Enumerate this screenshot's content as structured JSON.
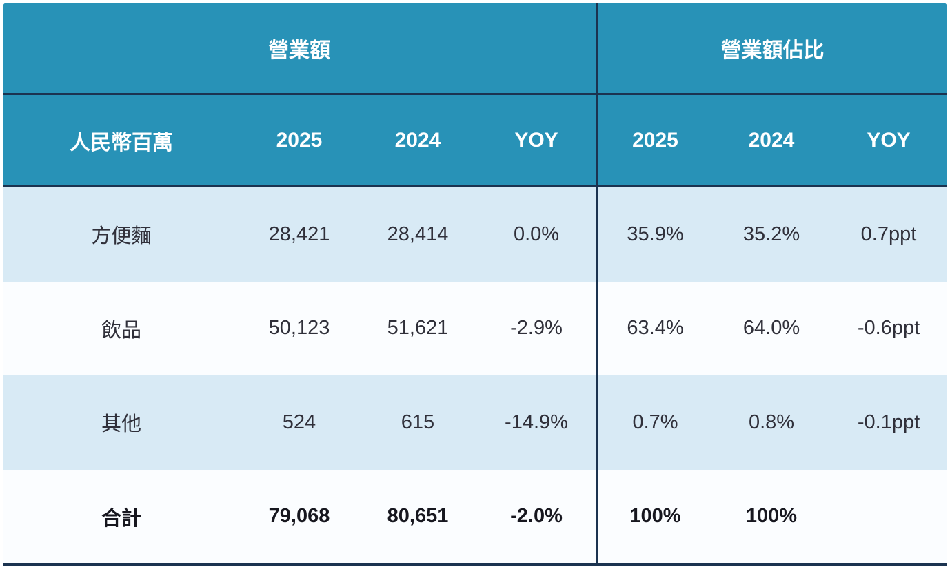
{
  "table": {
    "title_semantic": "revenue-breakdown-table",
    "group_headers": {
      "revenue": "營業額",
      "revenue_share": "營業額佔比"
    },
    "column_headers": {
      "row_label": "人民幣百萬",
      "left_2025": "2025",
      "left_2024": "2024",
      "left_yoy": "YOY",
      "right_2025": "2025",
      "right_2024": "2024",
      "right_yoy": "YOY"
    },
    "rows": [
      {
        "label": "方便麵",
        "cells": [
          "28,421",
          "28,414",
          "0.0%",
          "35.9%",
          "35.2%",
          "0.7ppt"
        ]
      },
      {
        "label": "飲品",
        "cells": [
          "50,123",
          "51,621",
          "-2.9%",
          "63.4%",
          "64.0%",
          "-0.6ppt"
        ]
      },
      {
        "label": "其他",
        "cells": [
          "524",
          "615",
          "-14.9%",
          "0.7%",
          "0.8%",
          "-0.1ppt"
        ]
      },
      {
        "label": "合計",
        "cells": [
          "79,068",
          "80,651",
          "-2.0%",
          "100%",
          "100%",
          ""
        ]
      }
    ]
  },
  "chart_data": {
    "type": "table",
    "title": "營業額 / 營業額佔比",
    "unit": "人民幣百萬",
    "columns": [
      "人民幣百萬",
      "營業額 2025",
      "營業額 2024",
      "營業額 YOY",
      "營業額佔比 2025",
      "營業額佔比 2024",
      "營業額佔比 YOY"
    ],
    "rows": [
      [
        "方便麵",
        28421,
        28414,
        "0.0%",
        "35.9%",
        "35.2%",
        "0.7ppt"
      ],
      [
        "飲品",
        50123,
        51621,
        "-2.9%",
        "63.4%",
        "64.0%",
        "-0.6ppt"
      ],
      [
        "其他",
        524,
        615,
        "-14.9%",
        "0.7%",
        "0.8%",
        "-0.1ppt"
      ],
      [
        "合計",
        79068,
        80651,
        "-2.0%",
        "100%",
        "100%",
        ""
      ]
    ]
  },
  "colors": {
    "header_bg": "#2892b7",
    "divider": "#1b3350",
    "row_alt_bg": "#d8eaf5",
    "row_bg": "#fbfdff",
    "header_text": "#ffffff",
    "body_text": "#30303a",
    "total_text": "#17171f"
  }
}
